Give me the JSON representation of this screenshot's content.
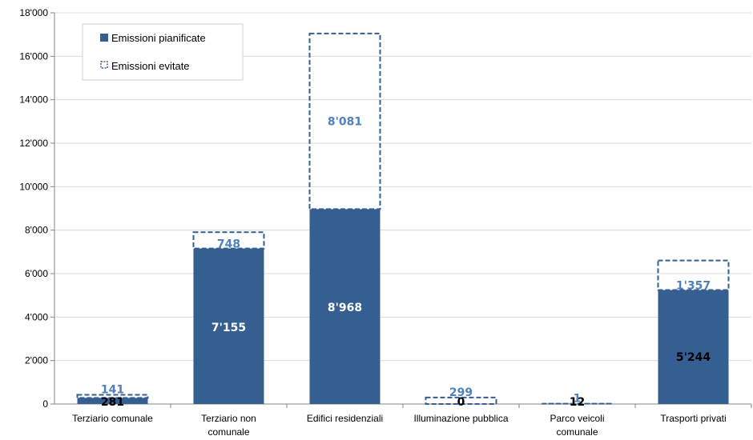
{
  "chart_data": {
    "type": "bar",
    "stacked": true,
    "categories": [
      [
        "Terziario comunale"
      ],
      [
        "Terziario non",
        "comunale"
      ],
      [
        "Edifici residenziali"
      ],
      [
        "Illuminazione pubblica"
      ],
      [
        "Parco veicoli",
        "comunale"
      ],
      [
        "Trasporti privati"
      ]
    ],
    "series": [
      {
        "name": "Emissioni pianificate",
        "values": [
          281,
          7155,
          8968,
          0,
          12,
          5244
        ],
        "labels": [
          "281",
          "7'155",
          "8'968",
          "0",
          "12",
          "5'244"
        ],
        "color": "#365F91",
        "style": "solid"
      },
      {
        "name": "Emissioni evitate",
        "values": [
          141,
          748,
          8081,
          299,
          1,
          1357
        ],
        "labels": [
          "141",
          "748",
          "8'081",
          "299",
          "1",
          "1'357"
        ],
        "color": "#4F81BD",
        "style": "dashed-outline"
      }
    ],
    "ylim": [
      0,
      18000
    ],
    "yticks": [
      0,
      2000,
      4000,
      6000,
      8000,
      10000,
      12000,
      14000,
      16000,
      18000
    ],
    "ytick_labels": [
      "0",
      "2'000",
      "4'000",
      "6'000",
      "8'000",
      "10'000",
      "12'000",
      "14'000",
      "16'000",
      "18'000"
    ],
    "grid": true,
    "legend": "top-left",
    "title": "",
    "xlabel": "",
    "ylabel": ""
  }
}
